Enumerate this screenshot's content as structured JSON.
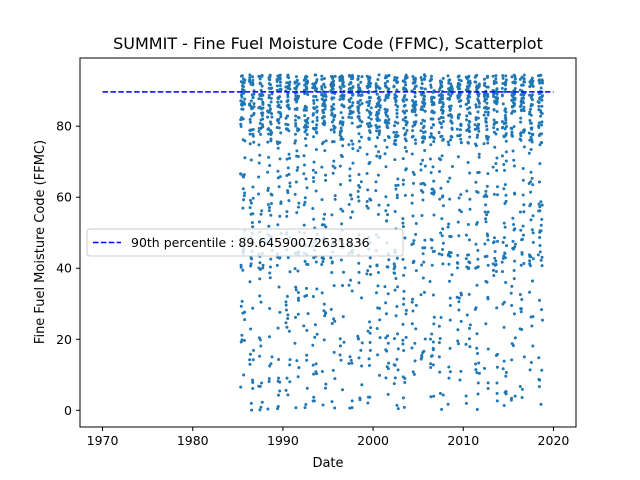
{
  "chart_data": {
    "type": "scatter",
    "title": "SUMMIT - Fine Fuel Moisture Code (FFMC), Scatterplot",
    "xlabel": "Date",
    "ylabel": "Fine Fuel Moisture Code (FFMC)",
    "xlim": [
      1967.5,
      2022.5
    ],
    "ylim": [
      -4.7,
      99.2
    ],
    "xticks": [
      1970,
      1980,
      1990,
      2000,
      2010,
      2020
    ],
    "yticks": [
      0,
      20,
      40,
      60,
      80
    ],
    "grid": false,
    "legend_position": "center-left",
    "reference_line": {
      "label": "90th percentile : 89.64590072631836",
      "y": 89.64590072631836,
      "x_range": [
        1970,
        2020
      ],
      "color": "#0000ff",
      "style": "dashed"
    },
    "series": [
      {
        "color": "#1f77b4",
        "x_range": [
          1985.3,
          2019.2
        ],
        "y_range": [
          0,
          94.5
        ],
        "seasons": [
          1985,
          1986,
          1987,
          1988,
          1989,
          1990,
          1991,
          1992,
          1993,
          1994,
          1995,
          1996,
          1997,
          1998,
          1999,
          2000,
          2001,
          2002,
          2003,
          2004,
          2005,
          2006,
          2007,
          2008,
          2009,
          2010,
          2011,
          2012,
          2013,
          2014,
          2015,
          2016,
          2017,
          2018,
          2019
        ]
      }
    ]
  }
}
